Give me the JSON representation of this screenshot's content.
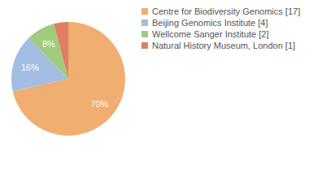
{
  "chart_data": {
    "type": "pie",
    "categories": [
      "Centre for Biodiversity Genomics [17]",
      "Beijing Genomics Institute [4]",
      "Wellcome Sanger Institute [2]",
      "Natural History Museum, London [1]"
    ],
    "values": [
      70,
      16,
      8,
      4
    ],
    "value_labels": [
      "70%",
      "16%",
      "8%",
      null
    ],
    "colors": [
      "#f0ae70",
      "#a4bde2",
      "#a0cb7c",
      "#e07e63"
    ],
    "data_labels": true,
    "legend": "right"
  }
}
